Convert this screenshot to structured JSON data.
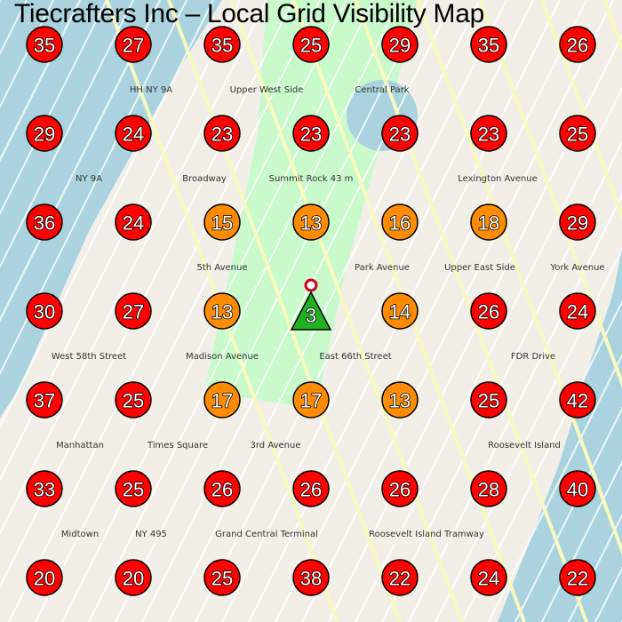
{
  "title": "Tiecrafters Inc – Local Grid Visibility Map",
  "colors": {
    "high": "#ff0000",
    "medium": "#ff8c00",
    "low": "#22b022",
    "water": "#aad3df",
    "park": "#c8facc",
    "land": "#f2efe9"
  },
  "legend_thresholds": {
    "low_max": 10,
    "medium_max": 19
  },
  "grid": [
    [
      35,
      27,
      35,
      25,
      29,
      35,
      26
    ],
    [
      29,
      24,
      23,
      23,
      23,
      23,
      25
    ],
    [
      36,
      24,
      15,
      13,
      16,
      18,
      29
    ],
    [
      30,
      27,
      13,
      3,
      14,
      26,
      24
    ],
    [
      37,
      25,
      17,
      17,
      13,
      25,
      42
    ],
    [
      33,
      25,
      26,
      26,
      26,
      28,
      40
    ],
    [
      20,
      20,
      25,
      38,
      22,
      24,
      22
    ]
  ],
  "business_location": {
    "row": 3,
    "col": 3,
    "marker": "pin-icon"
  },
  "map_labels": [
    "Upper West Side",
    "Central Park",
    "Summit Rock 43 m",
    "Upper East Side",
    "Manhattan",
    "Times Square",
    "Midtown",
    "Roosevelt Island",
    "West 58th Street",
    "East 66th Street",
    "Broadway",
    "Park Avenue",
    "5th Avenue",
    "Madison Avenue",
    "Lexington Avenue",
    "3rd Avenue",
    "York Avenue",
    "FDR Drive",
    "NY 9A",
    "HH NY 9A",
    "NY 495",
    "Roosevelt Island Tramway",
    "Grand Central Terminal"
  ]
}
